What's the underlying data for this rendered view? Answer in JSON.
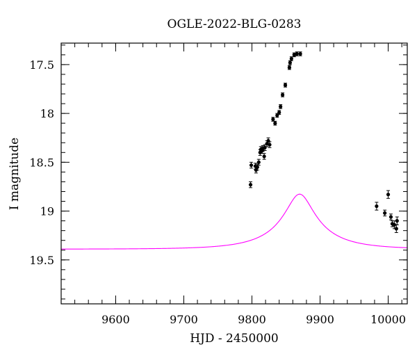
{
  "chart_data": {
    "type": "scatter",
    "title": "OGLE-2022-BLG-0283",
    "xlabel": "HJD - 2450000",
    "ylabel": "I magnitude",
    "xlim": [
      9520,
      10028
    ],
    "ylim": [
      19.95,
      17.28
    ],
    "y_inverted": true,
    "x_ticks": [
      9600,
      9700,
      9800,
      9900,
      10000
    ],
    "x_tick_labels": [
      "9600",
      "9700",
      "9800",
      "9900",
      "10000"
    ],
    "x_minor_step": 20,
    "y_ticks": [
      17.5,
      18,
      18.5,
      19,
      19.5
    ],
    "y_tick_labels": [
      "17.5",
      "18",
      "18.5",
      "19",
      "19.5"
    ],
    "y_minor_step": 0.1,
    "grid": false,
    "colors": {
      "model": "#ff00ff",
      "points": "#000000",
      "axes": "#000000"
    },
    "model": {
      "name": "model",
      "t0": 9870,
      "u0": 0.25,
      "tE": 80,
      "Is": 19.39,
      "fb": 0.22
    },
    "series": [
      {
        "x": [
          9798,
          9799,
          9805,
          9806,
          9808,
          9810,
          9812,
          9813,
          9815,
          9816,
          9818,
          9819,
          9822,
          9824,
          9826,
          9831,
          9834,
          9837,
          9840,
          9842,
          9845,
          9849,
          9855,
          9856,
          9858,
          9862,
          9866,
          9871,
          9983,
          9995,
          10000,
          10004,
          10006,
          10009,
          10012,
          10013
        ],
        "y": [
          18.73,
          18.53,
          18.54,
          18.58,
          18.55,
          18.5,
          18.4,
          18.37,
          18.38,
          18.36,
          18.44,
          18.35,
          18.31,
          18.28,
          18.32,
          18.06,
          18.1,
          18.02,
          17.99,
          17.93,
          17.81,
          17.71,
          17.53,
          17.48,
          17.44,
          17.4,
          17.39,
          17.39,
          18.95,
          19.02,
          18.83,
          19.06,
          19.13,
          19.14,
          19.18,
          19.1
        ],
        "yerr": [
          0.03,
          0.03,
          0.03,
          0.03,
          0.03,
          0.03,
          0.03,
          0.03,
          0.03,
          0.03,
          0.03,
          0.03,
          0.03,
          0.03,
          0.03,
          0.02,
          0.02,
          0.02,
          0.02,
          0.02,
          0.02,
          0.02,
          0.02,
          0.02,
          0.02,
          0.02,
          0.02,
          0.02,
          0.04,
          0.03,
          0.04,
          0.03,
          0.03,
          0.04,
          0.04,
          0.04
        ]
      }
    ]
  }
}
